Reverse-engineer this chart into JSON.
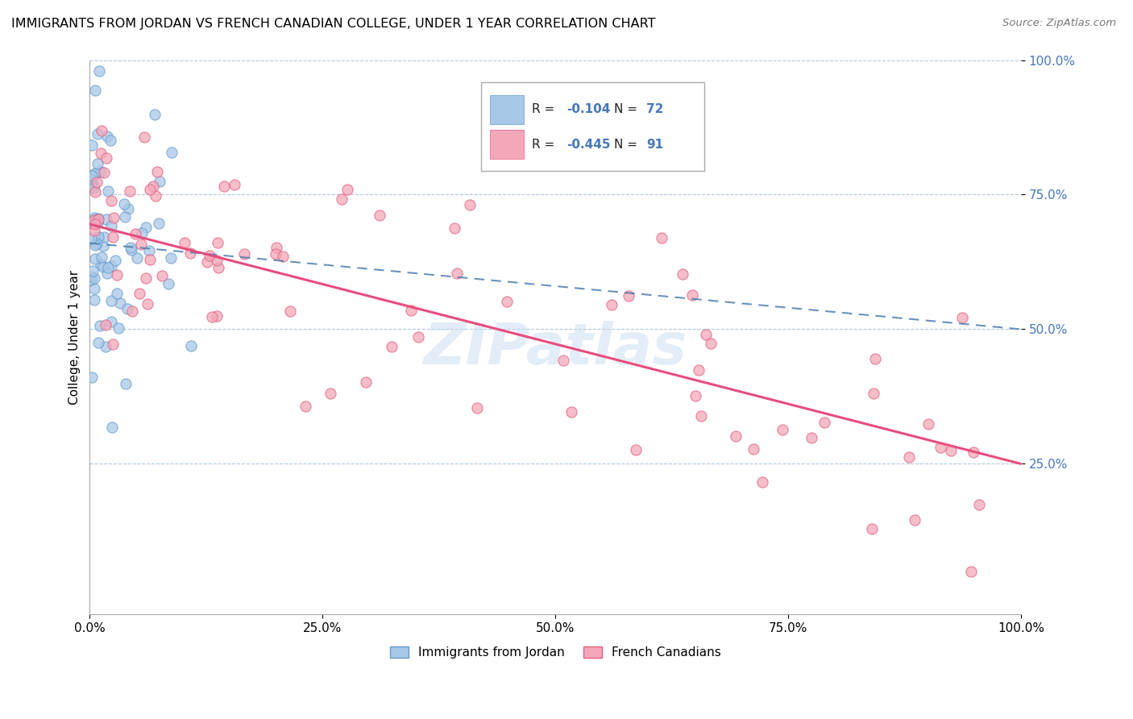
{
  "title": "IMMIGRANTS FROM JORDAN VS FRENCH CANADIAN COLLEGE, UNDER 1 YEAR CORRELATION CHART",
  "source_text": "Source: ZipAtlas.com",
  "ylabel": "College, Under 1 year",
  "xmin": 0.0,
  "xmax": 1.0,
  "ymin": 0.0,
  "ymax": 1.0,
  "xtick_labels": [
    "0.0%",
    "25.0%",
    "50.0%",
    "75.0%",
    "100.0%"
  ],
  "xtick_positions": [
    0.0,
    0.25,
    0.5,
    0.75,
    1.0
  ],
  "ytick_labels": [
    "25.0%",
    "50.0%",
    "75.0%",
    "100.0%"
  ],
  "ytick_positions": [
    0.25,
    0.5,
    0.75,
    1.0
  ],
  "blue_color": "#a8c8e8",
  "pink_color": "#f4a7b9",
  "blue_edge": "#6699cc",
  "pink_edge": "#e06080",
  "trend_blue_color": "#4477aa",
  "trend_pink_color": "#e84c7d",
  "legend_R_blue": "-0.104",
  "legend_N_blue": "72",
  "legend_R_pink": "-0.445",
  "legend_N_pink": "91",
  "legend_label_blue": "Immigrants from Jordan",
  "legend_label_pink": "French Canadians",
  "watermark_text": "ZIPatlas",
  "background_color": "#ffffff",
  "blue_intercept": 0.66,
  "blue_slope": -0.08,
  "pink_intercept": 0.68,
  "pink_slope": -0.445
}
